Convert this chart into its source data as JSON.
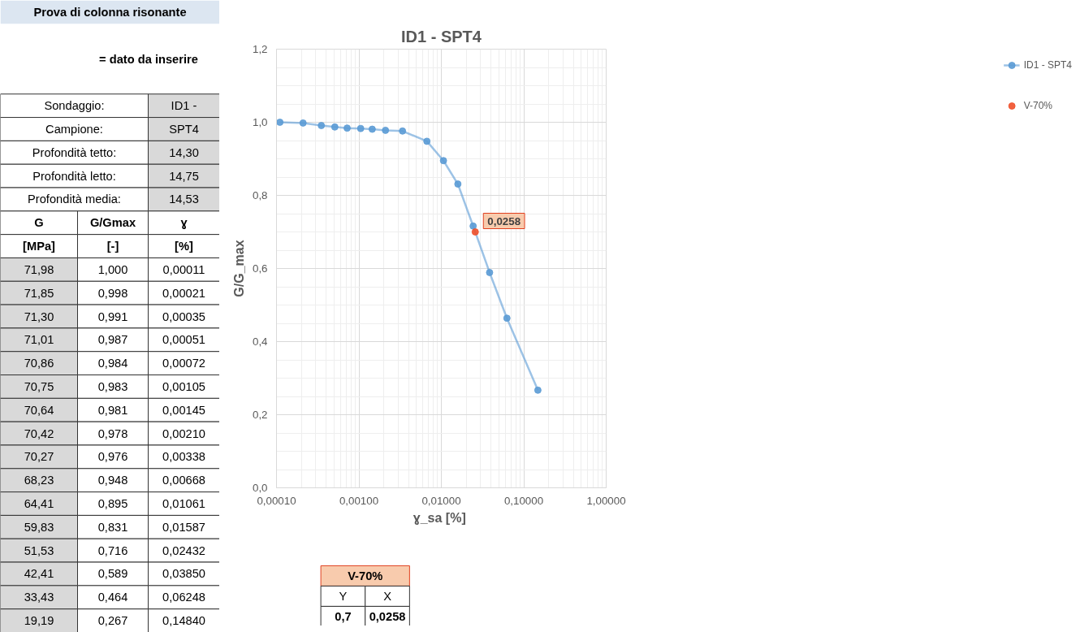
{
  "chart_data": {
    "type": "line",
    "title": "ID1 - SPT4",
    "xlabel": "ɣ_sa  [%]",
    "ylabel": "G/G_max",
    "x": [
      0.00011,
      0.00021,
      0.00035,
      0.00051,
      0.00072,
      0.00105,
      0.00145,
      0.0021,
      0.00338,
      0.00668,
      0.01061,
      0.01587,
      0.02432,
      0.0385,
      0.06248,
      0.1484
    ],
    "series": [
      {
        "name": "ID1 - SPT4",
        "color": "#5b9bd5",
        "values": [
          1.0,
          0.998,
          0.991,
          0.987,
          0.984,
          0.983,
          0.981,
          0.978,
          0.976,
          0.948,
          0.895,
          0.831,
          0.716,
          0.589,
          0.464,
          0.267
        ]
      },
      {
        "name": "V-70%",
        "color": "#f0502a",
        "x": [
          0.0258
        ],
        "values": [
          0.7
        ]
      }
    ],
    "xlim": [
      0.0001,
      1
    ],
    "ylim": [
      0,
      1.2
    ],
    "xticks": [
      {
        "value": 0.0001,
        "label": "0,00010"
      },
      {
        "value": 0.001,
        "label": "0,00100"
      },
      {
        "value": 0.01,
        "label": "0,01000"
      },
      {
        "value": 0.1,
        "label": "0,10000"
      },
      {
        "value": 1,
        "label": "1,00000"
      }
    ],
    "yticks": [
      {
        "value": 0,
        "label": "0,0"
      },
      {
        "value": 0.2,
        "label": "0,2"
      },
      {
        "value": 0.4,
        "label": "0,4"
      },
      {
        "value": 0.6,
        "label": "0,6"
      },
      {
        "value": 0.8,
        "label": "0,8"
      },
      {
        "value": 1.0,
        "label": "1,0"
      },
      {
        "value": 1.2,
        "label": "1,2"
      }
    ],
    "log": "x",
    "grid": true,
    "legend": "right",
    "marker": "circle",
    "line_style": "solid",
    "annotations": [
      "Prova di colonna risonante",
      "= dato da inserire",
      "Sondaggio:",
      "ID1 -",
      "Campione:",
      "SPT4",
      "Profondità tetto:",
      "14,30",
      "Profondità letto:",
      "14,75",
      "Profondità media:",
      "14,53",
      "G",
      "G/Gmax",
      "ɣ",
      "[MPa]",
      "[-]",
      "[%]",
      "71,98",
      "1,000",
      "0,00011",
      "71,85",
      "0,998",
      "0,00021",
      "71,30",
      "0,991",
      "0,00035",
      "71,01",
      "0,987",
      "0,00051",
      "70,86",
      "0,984",
      "0,00072",
      "70,75",
      "0,983",
      "0,00105",
      "70,64",
      "0,981",
      "0,00145",
      "70,42",
      "0,978",
      "0,00210",
      "70,27",
      "0,976",
      "0,00338",
      "68,23",
      "0,948",
      "0,00668",
      "64,41",
      "0,895",
      "0,01061",
      "59,83",
      "0,831",
      "0,01587",
      "51,53",
      "0,716",
      "0,02432",
      "42,41",
      "0,589",
      "0,03850",
      "33,43",
      "0,464",
      "0,06248",
      "19,19",
      "0,267",
      "0,14840",
      "V-70%",
      "Y",
      "X",
      "0,7",
      "0,0258",
      {
        "text": "0,0258",
        "x": 0.0258,
        "y": 0.7
      }
    ]
  }
}
